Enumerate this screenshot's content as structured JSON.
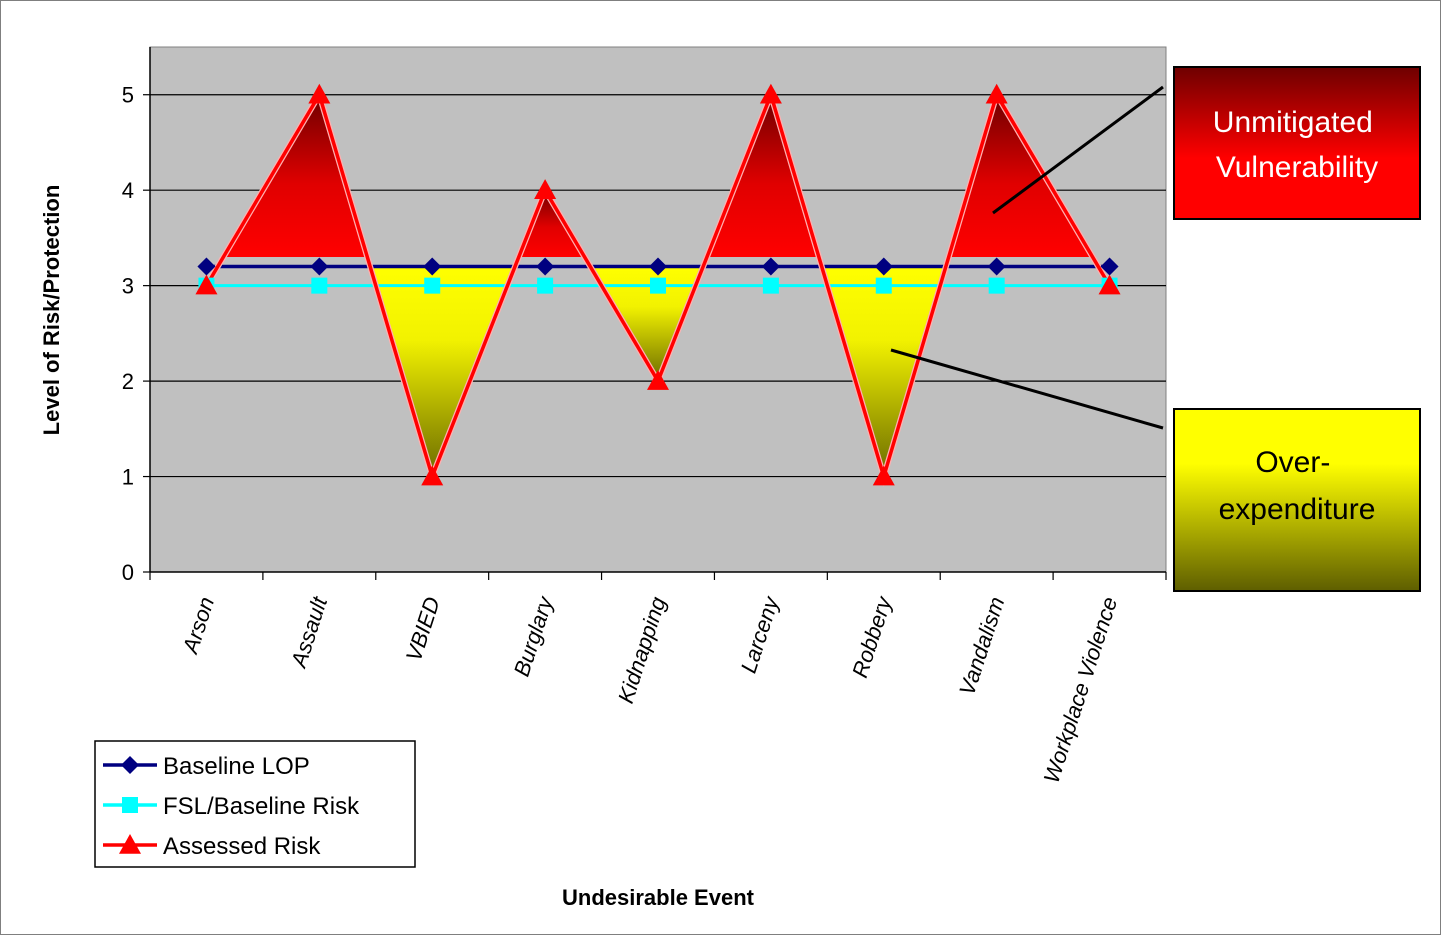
{
  "chart_data": {
    "type": "line",
    "title": "",
    "xlabel": "Undesirable Event",
    "ylabel": "Level of Risk/Protection",
    "ylim": [
      0,
      5.5
    ],
    "yticks": [
      0,
      1,
      2,
      3,
      4,
      5
    ],
    "grid": "horizontal",
    "legend_position": "bottom-left",
    "categories": [
      "Arson",
      "Assault",
      "VBIED",
      "Burglary",
      "Kidnapping",
      "Larceny",
      "Robbery",
      "Vandalism",
      "Workplace Violence"
    ],
    "series": [
      {
        "name": "Baseline LOP",
        "color": "#000080",
        "marker": "diamond",
        "values": [
          3.2,
          3.2,
          3.2,
          3.2,
          3.2,
          3.2,
          3.2,
          3.2,
          3.2
        ]
      },
      {
        "name": "FSL/Baseline Risk",
        "color": "#00ffff",
        "marker": "square",
        "values": [
          3,
          3,
          3,
          3,
          3,
          3,
          3,
          3,
          3
        ]
      },
      {
        "name": "Assessed Risk",
        "color": "#ff0000",
        "marker": "triangle",
        "values": [
          3,
          5,
          1,
          4,
          2,
          5,
          1,
          5,
          3
        ]
      }
    ],
    "annotations": [
      {
        "text": "Unmitigated Vulnerability",
        "lines": [
          "Unmitigated",
          "Vulnerability"
        ],
        "fill": "red-gradient"
      },
      {
        "text": "Over-expenditure",
        "lines": [
          "Over-",
          "expenditure"
        ],
        "fill": "yellow-gradient"
      }
    ]
  }
}
